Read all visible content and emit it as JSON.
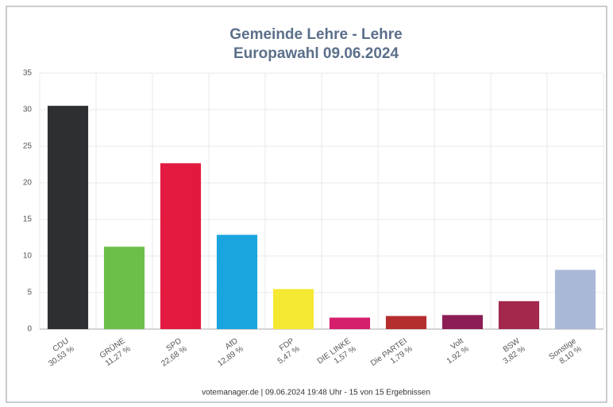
{
  "chart_data": {
    "type": "bar",
    "title": "Gemeinde Lehre - Lehre",
    "subtitle": "Europawahl 09.06.2024",
    "categories": [
      "CDU",
      "GRÜNE",
      "SPD",
      "AfD",
      "FDP",
      "DIE LINKE",
      "Die PARTEI",
      "Volt",
      "BSW",
      "Sonstige"
    ],
    "values": [
      30.53,
      11.27,
      22.68,
      12.89,
      5.47,
      1.57,
      1.79,
      1.92,
      3.82,
      8.1
    ],
    "value_labels": [
      "30,53 %",
      "11,27 %",
      "22,68 %",
      "12,89 %",
      "5,47 %",
      "1,57 %",
      "1,79 %",
      "1,92 %",
      "3,82 %",
      "8,10 %"
    ],
    "colors": [
      "#2d3033",
      "#6cc04a",
      "#e3193f",
      "#1aa5de",
      "#f5e830",
      "#d61f6c",
      "#b52d2d",
      "#8b1d54",
      "#a3284c",
      "#a9b8d6"
    ],
    "ylim": [
      0,
      35
    ],
    "yticks": [
      0,
      5,
      10,
      15,
      20,
      25,
      30,
      35
    ],
    "grid": true,
    "footer": "votemanager.de | 09.06.2024 19:48 Uhr - 15 von 15 Ergebnissen"
  }
}
